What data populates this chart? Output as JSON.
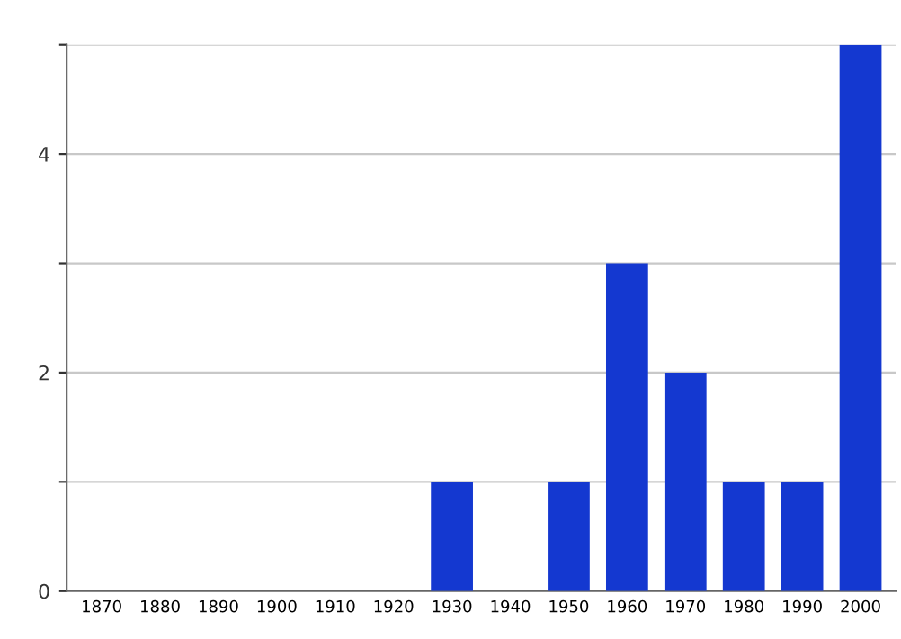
{
  "chart_data": {
    "type": "bar",
    "categories": [
      "1870",
      "1880",
      "1890",
      "1900",
      "1910",
      "1920",
      "1930",
      "1940",
      "1950",
      "1960",
      "1970",
      "1980",
      "1990",
      "2000"
    ],
    "values": [
      0,
      0,
      0,
      0,
      0,
      0,
      1,
      0,
      1,
      3,
      2,
      1,
      1,
      5
    ],
    "color": "#1438d0",
    "ylim": [
      0,
      5
    ],
    "yticks": [
      0,
      {
        "value": 1,
        "label": null
      },
      2,
      {
        "value": 3,
        "label": null
      },
      4,
      {
        "value": 5,
        "label": null
      }
    ],
    "grid": "y"
  }
}
